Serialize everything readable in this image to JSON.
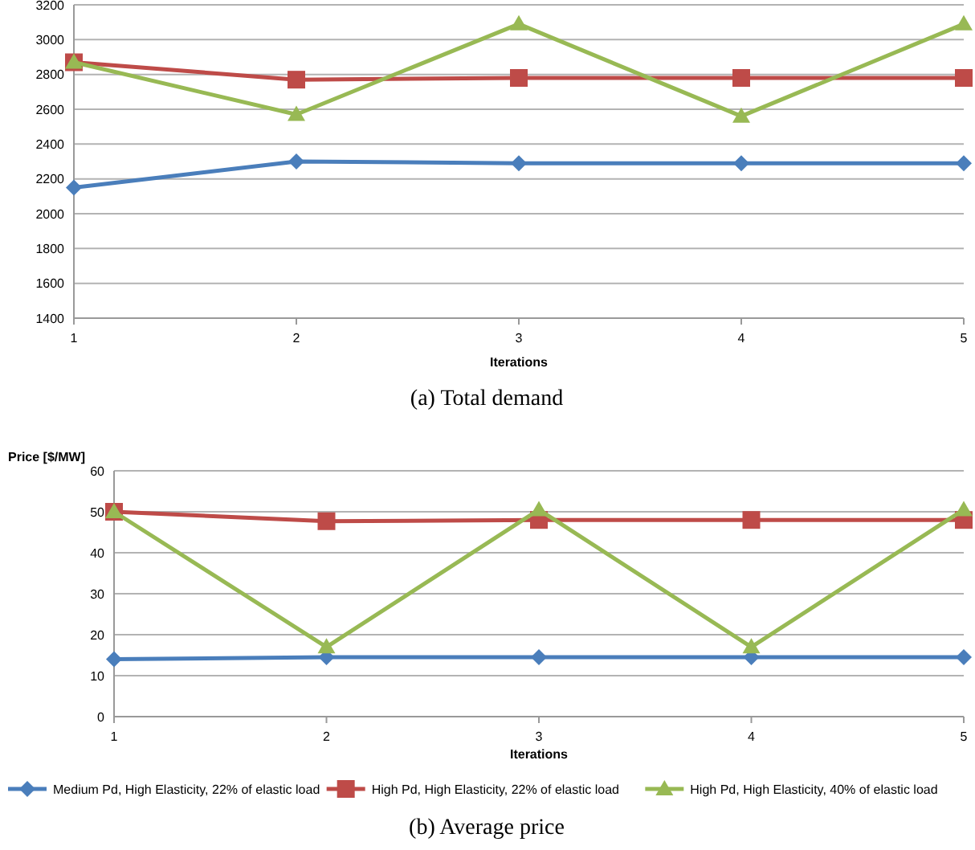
{
  "chart_data": [
    {
      "type": "line",
      "title": "(a) Total demand",
      "xlabel": "Iterations",
      "categories": [
        "1",
        "2",
        "3",
        "4",
        "5"
      ],
      "ylim": [
        1400,
        3200
      ],
      "yticks": [
        1400,
        1600,
        1800,
        2000,
        2200,
        2400,
        2600,
        2800,
        3000,
        3200
      ],
      "grid": "y",
      "legend": false,
      "series": [
        {
          "color": "#4a7ebb",
          "marker": "diamond",
          "values": [
            2150,
            2300,
            2290,
            2290,
            2290
          ]
        },
        {
          "color": "#be4b48",
          "marker": "square",
          "values": [
            2870,
            2770,
            2780,
            2780,
            2780
          ]
        },
        {
          "color": "#98b954",
          "marker": "triangle",
          "values": [
            2870,
            2570,
            3090,
            2560,
            3090
          ]
        }
      ]
    },
    {
      "type": "line",
      "title": "(b) Average price",
      "xlabel": "Iterations",
      "ylabel": "Price [$/MW]",
      "categories": [
        "1",
        "2",
        "3",
        "4",
        "5"
      ],
      "ylim": [
        0,
        60
      ],
      "yticks": [
        0,
        10,
        20,
        30,
        40,
        50,
        60
      ],
      "grid": "y",
      "legend": "bottom",
      "series": [
        {
          "name": "Medium Pd, High Elasticity, 22% of elastic load",
          "color": "#4a7ebb",
          "marker": "diamond",
          "values": [
            14,
            14.5,
            14.5,
            14.5,
            14.5
          ]
        },
        {
          "name": "High Pd, High Elasticity, 22% of elastic load",
          "color": "#be4b48",
          "marker": "square",
          "values": [
            50,
            47.7,
            48,
            48,
            48
          ]
        },
        {
          "name": "High Pd, High Elasticity, 40% of elastic load",
          "color": "#98b954",
          "marker": "triangle",
          "values": [
            50,
            17,
            50.5,
            17,
            50.5
          ]
        }
      ]
    }
  ]
}
